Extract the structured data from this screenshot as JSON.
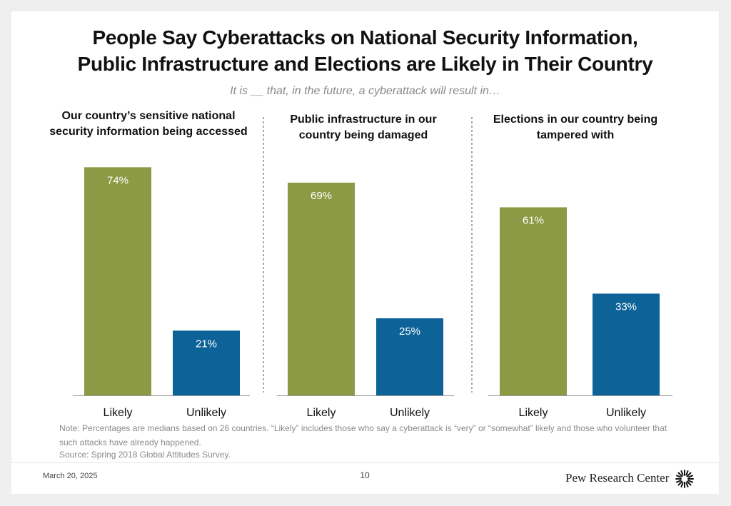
{
  "title": {
    "line1": "People Say Cyberattacks on National Security Information,",
    "line2": "Public Infrastructure and Elections are Likely in Their Country"
  },
  "subtitle": "It is __ that, in the future, a cyberattack will result in…",
  "chart_data": [
    {
      "type": "bar",
      "title_lines": [
        "Our country’s sensitive national",
        "security information being accessed"
      ],
      "categories": [
        "Likely",
        "Unlikely"
      ],
      "values": [
        74,
        21
      ],
      "value_labels": [
        "74%",
        "21%"
      ],
      "colors": [
        "#8c9a45",
        "#0d6298"
      ],
      "ylim": [
        0,
        80
      ]
    },
    {
      "type": "bar",
      "title_lines": [
        "Public infrastructure in our",
        "country being damaged"
      ],
      "categories": [
        "Likely",
        "Unlikely"
      ],
      "values": [
        69,
        25
      ],
      "value_labels": [
        "69%",
        "25%"
      ],
      "colors": [
        "#8c9a45",
        "#0d6298"
      ],
      "ylim": [
        0,
        80
      ]
    },
    {
      "type": "bar",
      "title_lines": [
        "Elections in our country being",
        "tampered with"
      ],
      "categories": [
        "Likely",
        "Unlikely"
      ],
      "values": [
        61,
        33
      ],
      "value_labels": [
        "61%",
        "33%"
      ],
      "colors": [
        "#8c9a45",
        "#0d6298"
      ],
      "ylim": [
        0,
        80
      ]
    }
  ],
  "note": "Note: Percentages are medians based on 26 countries. “Likely” includes those who say a cyberattack is “very” or “somewhat” likely and those who volunteer that such attacks have already happened.",
  "source": "Source: Spring 2018 Global Attitudes Survey.",
  "footer": {
    "date": "March 20, 2025",
    "page": "10",
    "brand": "Pew Research Center"
  },
  "icons": {
    "brand_logo": "pew-sunburst-icon"
  }
}
